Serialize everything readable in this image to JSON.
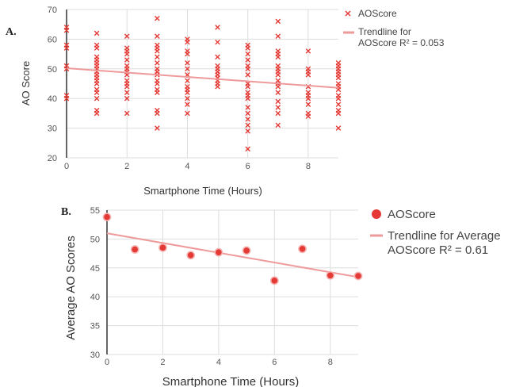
{
  "chart_data": [
    {
      "panel_label": "A.",
      "type": "scatter",
      "xlabel": "Smartphone Time (Hours)",
      "ylabel": "AO Score",
      "xlim": [
        0,
        9
      ],
      "ylim": [
        20,
        70
      ],
      "xticks": [
        "0",
        "2",
        "4",
        "6",
        "8"
      ],
      "yticks": [
        "20",
        "30",
        "40",
        "50",
        "60",
        "70"
      ],
      "grid": true,
      "legend_position": "right",
      "series": [
        {
          "name": "AOScore",
          "marker": "x",
          "color": "#e53935",
          "points": [
            [
              0,
              64
            ],
            [
              0,
              63
            ],
            [
              0,
              58
            ],
            [
              0,
              57
            ],
            [
              0,
              51
            ],
            [
              0,
              50
            ],
            [
              0,
              41
            ],
            [
              0,
              40
            ],
            [
              1,
              62
            ],
            [
              1,
              58
            ],
            [
              1,
              57
            ],
            [
              1,
              54
            ],
            [
              1,
              53
            ],
            [
              1,
              52
            ],
            [
              1,
              51
            ],
            [
              1,
              50
            ],
            [
              1,
              49
            ],
            [
              1,
              48
            ],
            [
              1,
              47
            ],
            [
              1,
              46
            ],
            [
              1,
              45
            ],
            [
              1,
              43
            ],
            [
              1,
              42
            ],
            [
              1,
              40
            ],
            [
              1,
              36
            ],
            [
              1,
              35
            ],
            [
              2,
              61
            ],
            [
              2,
              57
            ],
            [
              2,
              56
            ],
            [
              2,
              55
            ],
            [
              2,
              53
            ],
            [
              2,
              51
            ],
            [
              2,
              50
            ],
            [
              2,
              49
            ],
            [
              2,
              48
            ],
            [
              2,
              46
            ],
            [
              2,
              45
            ],
            [
              2,
              44
            ],
            [
              2,
              42
            ],
            [
              2,
              40
            ],
            [
              2,
              35
            ],
            [
              3,
              67
            ],
            [
              3,
              61
            ],
            [
              3,
              58
            ],
            [
              3,
              57
            ],
            [
              3,
              56
            ],
            [
              3,
              54
            ],
            [
              3,
              52
            ],
            [
              3,
              50
            ],
            [
              3,
              49
            ],
            [
              3,
              48
            ],
            [
              3,
              46
            ],
            [
              3,
              45
            ],
            [
              3,
              43
            ],
            [
              3,
              42
            ],
            [
              3,
              36
            ],
            [
              3,
              35
            ],
            [
              3,
              30
            ],
            [
              4,
              60
            ],
            [
              4,
              59
            ],
            [
              4,
              56
            ],
            [
              4,
              55
            ],
            [
              4,
              52
            ],
            [
              4,
              50
            ],
            [
              4,
              48
            ],
            [
              4,
              46
            ],
            [
              4,
              44
            ],
            [
              4,
              43
            ],
            [
              4,
              42
            ],
            [
              4,
              40
            ],
            [
              4,
              38
            ],
            [
              4,
              35
            ],
            [
              5,
              64
            ],
            [
              5,
              59
            ],
            [
              5,
              54
            ],
            [
              5,
              51
            ],
            [
              5,
              50
            ],
            [
              5,
              49
            ],
            [
              5,
              48
            ],
            [
              5,
              47
            ],
            [
              5,
              46
            ],
            [
              5,
              45
            ],
            [
              5,
              44
            ],
            [
              6,
              58
            ],
            [
              6,
              57
            ],
            [
              6,
              55
            ],
            [
              6,
              53
            ],
            [
              6,
              51
            ],
            [
              6,
              50
            ],
            [
              6,
              48
            ],
            [
              6,
              45
            ],
            [
              6,
              44
            ],
            [
              6,
              42
            ],
            [
              6,
              41
            ],
            [
              6,
              40
            ],
            [
              6,
              37
            ],
            [
              6,
              35
            ],
            [
              6,
              33
            ],
            [
              6,
              31
            ],
            [
              6,
              29
            ],
            [
              6,
              23
            ],
            [
              7,
              66
            ],
            [
              7,
              61
            ],
            [
              7,
              56
            ],
            [
              7,
              55
            ],
            [
              7,
              54
            ],
            [
              7,
              51
            ],
            [
              7,
              50
            ],
            [
              7,
              49
            ],
            [
              7,
              48
            ],
            [
              7,
              46
            ],
            [
              7,
              45
            ],
            [
              7,
              44
            ],
            [
              7,
              42
            ],
            [
              7,
              39
            ],
            [
              7,
              37
            ],
            [
              7,
              35
            ],
            [
              7,
              31
            ],
            [
              8,
              56
            ],
            [
              8,
              50
            ],
            [
              8,
              49
            ],
            [
              8,
              48
            ],
            [
              8,
              44
            ],
            [
              8,
              42
            ],
            [
              8,
              41
            ],
            [
              8,
              40
            ],
            [
              8,
              38
            ],
            [
              8,
              35
            ],
            [
              8,
              34
            ],
            [
              9,
              52
            ],
            [
              9,
              51
            ],
            [
              9,
              50
            ],
            [
              9,
              49
            ],
            [
              9,
              48
            ],
            [
              9,
              47
            ],
            [
              9,
              45
            ],
            [
              9,
              44
            ],
            [
              9,
              43
            ],
            [
              9,
              41
            ],
            [
              9,
              40
            ],
            [
              9,
              38
            ],
            [
              9,
              36
            ],
            [
              9,
              35
            ],
            [
              9,
              30
            ]
          ]
        },
        {
          "name": "Trendline for AOScore R² = 0.053",
          "legend_lines": [
            "Trendline for",
            "AOScore R² = 0.053"
          ],
          "type": "line",
          "color": "#ef9a9a",
          "points": [
            [
              0,
              50.2
            ],
            [
              9,
              43.6
            ]
          ]
        }
      ]
    },
    {
      "panel_label": "B.",
      "type": "scatter",
      "xlabel": "Smartphone Time (Hours)",
      "ylabel": "Average AO Scores",
      "xlim": [
        0,
        9
      ],
      "ylim": [
        30,
        55
      ],
      "xticks": [
        "0",
        "2",
        "4",
        "6",
        "8"
      ],
      "yticks": [
        "30",
        "35",
        "40",
        "45",
        "50",
        "55"
      ],
      "grid": true,
      "legend_position": "right",
      "series": [
        {
          "name": "AOScore",
          "marker": "circle",
          "color": "#e53935",
          "points": [
            [
              0,
              53.8
            ],
            [
              1,
              48.2
            ],
            [
              2,
              48.5
            ],
            [
              3,
              47.2
            ],
            [
              4,
              47.7
            ],
            [
              5,
              48.0
            ],
            [
              6,
              42.8
            ],
            [
              7,
              48.3
            ],
            [
              8,
              43.7
            ],
            [
              9,
              43.6
            ]
          ]
        },
        {
          "name": "Trendline for Average AOScore R² = 0.61",
          "legend_lines": [
            "Trendline for Average",
            "AOScore R² = 0.61"
          ],
          "type": "line",
          "color": "#ef9a9a",
          "points": [
            [
              0,
              51.0
            ],
            [
              9,
              43.4
            ]
          ]
        }
      ]
    }
  ]
}
